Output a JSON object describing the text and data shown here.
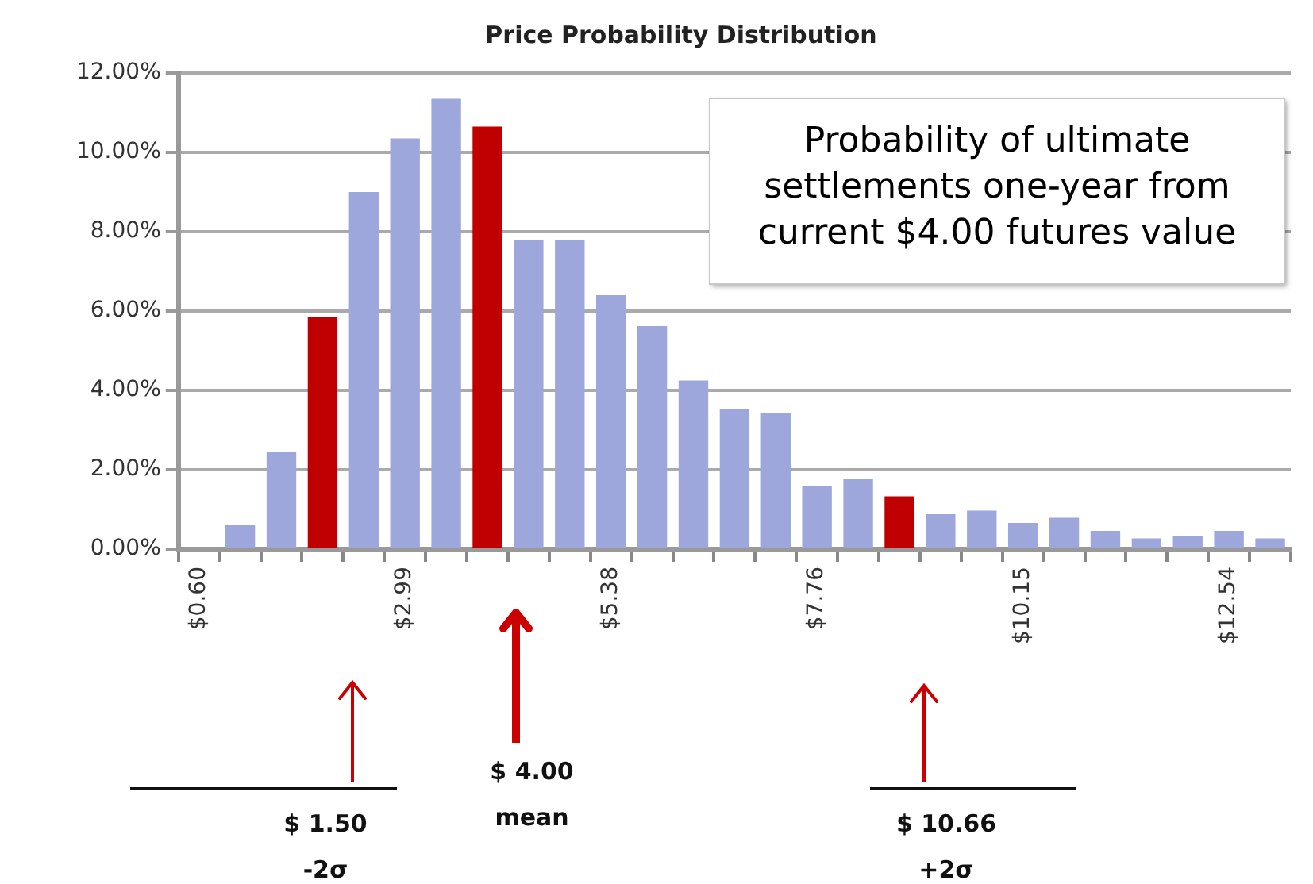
{
  "chart_data": {
    "type": "bar",
    "title": "Price Probability Distribution",
    "categories": [
      "$0.60",
      null,
      null,
      null,
      null,
      "$2.99",
      null,
      null,
      null,
      null,
      "$5.38",
      null,
      null,
      null,
      null,
      "$7.76",
      null,
      null,
      null,
      null,
      "$10.15",
      null,
      null,
      null,
      null,
      "$12.54",
      null
    ],
    "values": [
      null,
      0.6,
      2.45,
      5.85,
      9.0,
      10.35,
      11.35,
      10.65,
      7.8,
      7.8,
      6.4,
      5.62,
      4.25,
      3.53,
      3.43,
      1.59,
      1.77,
      1.33,
      0.88,
      0.97,
      0.66,
      0.79,
      0.46,
      0.27,
      0.32,
      0.46,
      0.27
    ],
    "colors": [
      "#9ea7dc",
      "#9ea7dc",
      "#9ea7dc",
      "#c00000",
      "#9ea7dc",
      "#9ea7dc",
      "#9ea7dc",
      "#c00000",
      "#9ea7dc",
      "#9ea7dc",
      "#9ea7dc",
      "#9ea7dc",
      "#9ea7dc",
      "#9ea7dc",
      "#9ea7dc",
      "#9ea7dc",
      "#9ea7dc",
      "#c00000",
      "#9ea7dc",
      "#9ea7dc",
      "#9ea7dc",
      "#9ea7dc",
      "#9ea7dc",
      "#9ea7dc",
      "#9ea7dc",
      "#9ea7dc",
      "#9ea7dc"
    ],
    "ylim": [
      0,
      12
    ],
    "yticks": [
      {
        "value": 0,
        "label": "0.00%"
      },
      {
        "value": 2,
        "label": "2.00%"
      },
      {
        "value": 4,
        "label": "4.00%"
      },
      {
        "value": 6,
        "label": "6.00%"
      },
      {
        "value": 8,
        "label": "8.00%"
      },
      {
        "value": 10,
        "label": "10.00%"
      },
      {
        "value": 12,
        "label": "12.00%"
      }
    ],
    "grid": "y",
    "legend": false,
    "annotations": [
      "Probability of ultimate settlements one-year from current $4.00 futures value",
      "$ 1.50\n-2σ",
      "$ 4.00\nmean",
      "$ 10.66\n+2σ"
    ]
  }
}
